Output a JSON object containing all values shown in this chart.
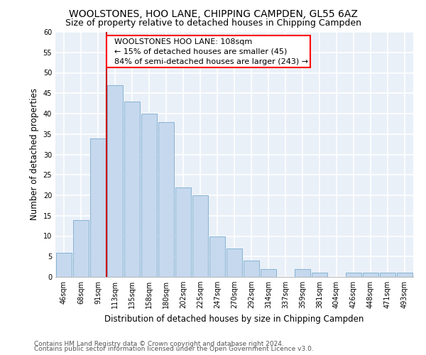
{
  "title": "WOOLSTONES, HOO LANE, CHIPPING CAMPDEN, GL55 6AZ",
  "subtitle": "Size of property relative to detached houses in Chipping Campden",
  "xlabel": "Distribution of detached houses by size in Chipping Campden",
  "ylabel": "Number of detached properties",
  "bin_labels": [
    "46sqm",
    "68sqm",
    "91sqm",
    "113sqm",
    "135sqm",
    "158sqm",
    "180sqm",
    "202sqm",
    "225sqm",
    "247sqm",
    "270sqm",
    "292sqm",
    "314sqm",
    "337sqm",
    "359sqm",
    "381sqm",
    "404sqm",
    "426sqm",
    "448sqm",
    "471sqm",
    "493sqm"
  ],
  "values": [
    6,
    14,
    34,
    47,
    43,
    40,
    38,
    22,
    20,
    10,
    7,
    4,
    2,
    0,
    2,
    1,
    0,
    1,
    1,
    1,
    1
  ],
  "bar_color": "#c5d8ed",
  "bar_edge_color": "#7aaccf",
  "red_line_index": 3,
  "annotation_text": "  WOOLSTONES HOO LANE: 108sqm\n  ← 15% of detached houses are smaller (45)\n  84% of semi-detached houses are larger (243) →",
  "annotation_box_color": "white",
  "annotation_box_edge_color": "red",
  "red_line_color": "#cc0000",
  "ylim": [
    0,
    60
  ],
  "yticks": [
    0,
    5,
    10,
    15,
    20,
    25,
    30,
    35,
    40,
    45,
    50,
    55,
    60
  ],
  "background_color": "#eaf0f8",
  "grid_color": "white",
  "footer_line1": "Contains HM Land Registry data © Crown copyright and database right 2024.",
  "footer_line2": "Contains public sector information licensed under the Open Government Licence v3.0.",
  "title_fontsize": 10,
  "subtitle_fontsize": 9,
  "xlabel_fontsize": 8.5,
  "ylabel_fontsize": 8.5,
  "tick_fontsize": 7,
  "footer_fontsize": 6.5,
  "annotation_fontsize": 8
}
